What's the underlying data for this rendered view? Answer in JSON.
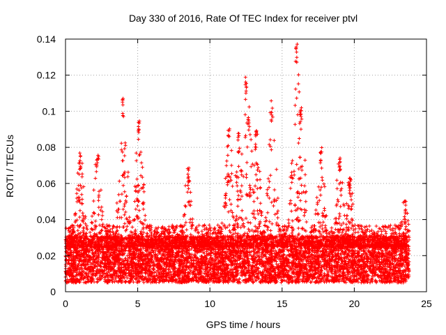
{
  "chart_data": {
    "type": "scatter",
    "title": "Day 330 of 2016, Rate Of TEC Index for receiver ptvl",
    "xlabel": "GPS time / hours",
    "ylabel": "ROTI / TECUs",
    "xlim": [
      0,
      25
    ],
    "ylim": [
      0,
      0.14
    ],
    "x_ticks": [
      0,
      5,
      10,
      15,
      20,
      25
    ],
    "x_tick_labels": [
      "0",
      "5",
      "10",
      "15",
      "20",
      "25"
    ],
    "y_ticks": [
      0,
      0.02,
      0.04,
      0.06,
      0.08,
      0.1,
      0.12,
      0.14
    ],
    "y_tick_labels": [
      "0",
      "0.02",
      "0.04",
      "0.06",
      "0.08",
      "0.1",
      "0.12",
      "0.14"
    ],
    "grid": true,
    "marker": "+",
    "series": [
      {
        "name": "ROTI",
        "color": "#ff0000",
        "x_range": [
          0,
          23.8
        ],
        "baseline_band": [
          0.01,
          0.025
        ],
        "notable_peaks": [
          {
            "x": 1.0,
            "y": 0.079
          },
          {
            "x": 2.2,
            "y": 0.077
          },
          {
            "x": 4.0,
            "y": 0.109
          },
          {
            "x": 5.1,
            "y": 0.095
          },
          {
            "x": 8.5,
            "y": 0.069
          },
          {
            "x": 11.3,
            "y": 0.092
          },
          {
            "x": 12.0,
            "y": 0.089
          },
          {
            "x": 12.5,
            "y": 0.122
          },
          {
            "x": 12.7,
            "y": 0.103
          },
          {
            "x": 13.2,
            "y": 0.092
          },
          {
            "x": 14.3,
            "y": 0.106
          },
          {
            "x": 16.0,
            "y": 0.138
          },
          {
            "x": 16.3,
            "y": 0.105
          },
          {
            "x": 17.7,
            "y": 0.08
          },
          {
            "x": 19.0,
            "y": 0.075
          },
          {
            "x": 19.7,
            "y": 0.064
          },
          {
            "x": 23.5,
            "y": 0.052
          }
        ]
      }
    ]
  }
}
